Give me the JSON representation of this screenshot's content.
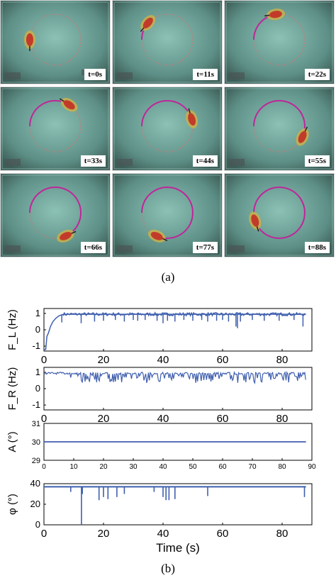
{
  "frames": [
    {
      "label": "t=0s",
      "progress": 0.0
    },
    {
      "label": "t=11s",
      "progress": 0.12
    },
    {
      "label": "t=22s",
      "progress": 0.24
    },
    {
      "label": "t=33s",
      "progress": 0.36
    },
    {
      "label": "t=44s",
      "progress": 0.48
    },
    {
      "label": "t=55s",
      "progress": 0.6
    },
    {
      "label": "t=66s",
      "progress": 0.72
    },
    {
      "label": "t=77s",
      "progress": 0.86
    },
    {
      "label": "t=88s",
      "progress": 1.0
    }
  ],
  "captions": {
    "a": "(a)",
    "b": "(b)"
  },
  "colors": {
    "trace": "#3f5fae",
    "path": "#c0259a",
    "water": "#5f8f86"
  },
  "chart_data": [
    {
      "type": "line",
      "ylabel": "F_L (Hz)",
      "xlim": [
        0,
        90
      ],
      "ylim": [
        -1.3,
        1.3
      ],
      "xticks": [
        0,
        20,
        40,
        60,
        80
      ],
      "yticks": [
        -1,
        0,
        1
      ],
      "baseline": 0.95,
      "points": [
        [
          0,
          -1.2
        ],
        [
          0.6,
          -1.2
        ],
        [
          1.0,
          -0.4
        ],
        [
          1.5,
          -0.2
        ],
        [
          2.2,
          0.2
        ],
        [
          3,
          0.5
        ],
        [
          4,
          0.7
        ],
        [
          5,
          0.85
        ],
        [
          6.5,
          0.95
        ],
        [
          88,
          0.95
        ]
      ],
      "spikes": [
        [
          6,
          0.45
        ],
        [
          12.5,
          0.4
        ],
        [
          17,
          0.5
        ],
        [
          20,
          0.55
        ],
        [
          24,
          0.6
        ],
        [
          27,
          0.5
        ],
        [
          30,
          0.6
        ],
        [
          31.5,
          0.55
        ],
        [
          34,
          0.6
        ],
        [
          38,
          0.55
        ],
        [
          40,
          0.4
        ],
        [
          41.5,
          0.55
        ],
        [
          44,
          0.5
        ],
        [
          47,
          0.6
        ],
        [
          50,
          0.55
        ],
        [
          53,
          0.6
        ],
        [
          55,
          0.5
        ],
        [
          58,
          0.55
        ],
        [
          60,
          0.6
        ],
        [
          62,
          0.5
        ],
        [
          64.5,
          0.2
        ],
        [
          65,
          0.1
        ],
        [
          66,
          0.5
        ],
        [
          70,
          0.6
        ],
        [
          74,
          0.55
        ],
        [
          79,
          0.55
        ],
        [
          84,
          0.6
        ],
        [
          87,
          0.2
        ]
      ]
    },
    {
      "type": "line",
      "ylabel": "F_R (Hz)",
      "xlim": [
        0,
        90
      ],
      "ylim": [
        -1.3,
        1.3
      ],
      "xticks": [
        0,
        20,
        40,
        60,
        80
      ],
      "yticks": [
        -1,
        0,
        1
      ],
      "baseline": 1.0,
      "noise_low": 0.35,
      "noise_end": 88
    },
    {
      "type": "line",
      "ylabel": "A (°)",
      "xlim": [
        0,
        90
      ],
      "ylim": [
        29,
        31
      ],
      "xticks": [
        0,
        10,
        20,
        30,
        40,
        50,
        60,
        70,
        80,
        90
      ],
      "yticks": [
        29,
        30,
        31
      ],
      "points": [
        [
          0,
          30
        ],
        [
          88,
          30
        ]
      ]
    },
    {
      "type": "line",
      "ylabel": "φ (°)",
      "xlabel": "Time (s)",
      "xlim": [
        0,
        90
      ],
      "ylim": [
        0,
        40
      ],
      "xticks": [
        0,
        20,
        40,
        60,
        80
      ],
      "yticks": [
        0,
        20,
        40
      ],
      "baseline": 37,
      "spikes": [
        [
          9,
          32
        ],
        [
          12.6,
          0
        ],
        [
          12.9,
          30
        ],
        [
          18.5,
          24
        ],
        [
          20,
          27
        ],
        [
          21.5,
          25
        ],
        [
          24.5,
          27
        ],
        [
          27,
          30
        ],
        [
          37,
          32
        ],
        [
          40,
          27
        ],
        [
          41,
          24
        ],
        [
          42,
          24
        ],
        [
          44,
          25
        ],
        [
          55,
          28
        ],
        [
          87.5,
          27
        ]
      ]
    }
  ]
}
